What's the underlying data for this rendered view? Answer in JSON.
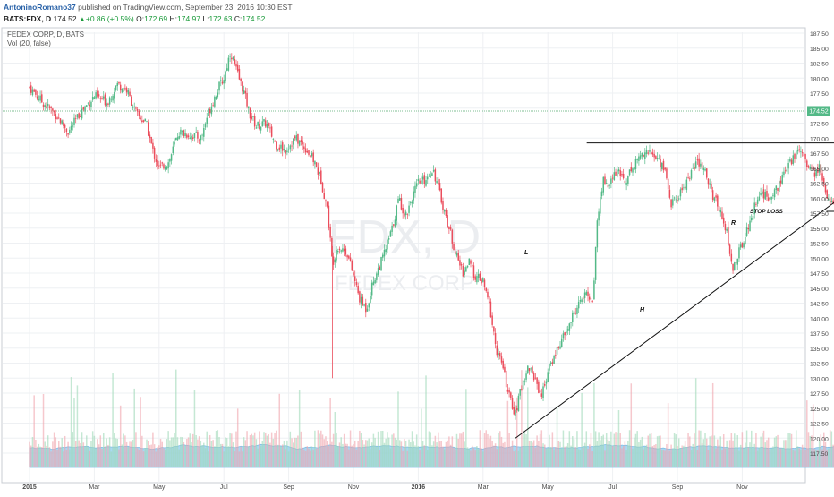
{
  "header": {
    "author": "AntoninoRomano37",
    "published": "published on TradingView.com, September 23, 2016 10:30 EST",
    "symbol": "BATS:FDX, D",
    "last": "174.52",
    "change_arrow": "▲",
    "change": "+0.86 (+0.5%)",
    "o_label": "O:",
    "o_value": "172.69",
    "h_label": "H:",
    "h_value": "174.97",
    "l_label": "L:",
    "l_value": "172.63",
    "c_label": "C:",
    "c_value": "174.52"
  },
  "pane": {
    "title": "FEDEX CORP, D, BATS",
    "volume_label": "Vol (20, false)",
    "watermark_symbol": "FDX, D",
    "watermark_name": "FEDEX CORP",
    "last_price_tag": "174.52"
  },
  "annotations": {
    "left_shoulder": "L",
    "head": "H",
    "right_shoulder": "R",
    "stop_loss": "STOP LOSS"
  },
  "colors": {
    "up": "#53b987",
    "down": "#eb4d5c",
    "volume_area": "#8ecbef",
    "grid": "#eef0f3",
    "last_price": "#7fbf93"
  },
  "chart_data": {
    "type": "candlestick",
    "title": "FEDEX CORP, D, BATS",
    "x_ticks": [
      "2015",
      "Mar",
      "May",
      "Jul",
      "Sep",
      "Nov",
      "2016",
      "Mar",
      "May",
      "Jul",
      "Sep",
      "Nov"
    ],
    "y_ticks": [
      "187.50",
      "185.00",
      "182.50",
      "180.00",
      "177.50",
      "175.00",
      "172.50",
      "170.00",
      "167.50",
      "165.00",
      "162.50",
      "160.00",
      "157.50",
      "155.00",
      "152.50",
      "150.00",
      "147.50",
      "145.00",
      "142.50",
      "140.00",
      "137.50",
      "135.00",
      "132.50",
      "130.00",
      "127.50",
      "125.00",
      "122.50",
      "120.00",
      "117.50"
    ],
    "ylim": [
      116.5,
      188.5
    ],
    "last_close": 174.52,
    "price_path": [
      {
        "x": 0.0,
        "y": 178.5
      },
      {
        "x": 0.4,
        "y": 176.0
      },
      {
        "x": 0.8,
        "y": 174.0
      },
      {
        "x": 1.2,
        "y": 171.0
      },
      {
        "x": 1.6,
        "y": 174.5
      },
      {
        "x": 2.0,
        "y": 177.0
      },
      {
        "x": 2.4,
        "y": 176.0
      },
      {
        "x": 2.7,
        "y": 179.0
      },
      {
        "x": 3.0,
        "y": 178.0
      },
      {
        "x": 3.3,
        "y": 174.0
      },
      {
        "x": 3.6,
        "y": 172.5
      },
      {
        "x": 3.8,
        "y": 168.0
      },
      {
        "x": 4.0,
        "y": 165.0
      },
      {
        "x": 4.3,
        "y": 166.0
      },
      {
        "x": 4.6,
        "y": 171.0
      },
      {
        "x": 5.0,
        "y": 170.5
      },
      {
        "x": 5.3,
        "y": 170.0
      },
      {
        "x": 5.5,
        "y": 174.0
      },
      {
        "x": 5.8,
        "y": 178.0
      },
      {
        "x": 6.0,
        "y": 180.0
      },
      {
        "x": 6.2,
        "y": 184.5
      },
      {
        "x": 6.4,
        "y": 181.0
      },
      {
        "x": 6.6,
        "y": 178.0
      },
      {
        "x": 6.8,
        "y": 174.0
      },
      {
        "x": 7.0,
        "y": 172.0
      },
      {
        "x": 7.3,
        "y": 172.5
      },
      {
        "x": 7.6,
        "y": 169.0
      },
      {
        "x": 7.9,
        "y": 168.0
      },
      {
        "x": 8.2,
        "y": 170.0
      },
      {
        "x": 8.5,
        "y": 168.5
      },
      {
        "x": 8.8,
        "y": 166.0
      },
      {
        "x": 9.0,
        "y": 163.0
      },
      {
        "x": 9.2,
        "y": 158.0
      },
      {
        "x": 9.35,
        "y": 149.0
      },
      {
        "x": 9.5,
        "y": 152.0
      },
      {
        "x": 9.8,
        "y": 151.0
      },
      {
        "x": 10.0,
        "y": 147.0
      },
      {
        "x": 10.2,
        "y": 143.0
      },
      {
        "x": 10.4,
        "y": 141.5
      },
      {
        "x": 10.6,
        "y": 146.0
      },
      {
        "x": 10.9,
        "y": 150.0
      },
      {
        "x": 11.2,
        "y": 155.0
      },
      {
        "x": 11.4,
        "y": 160.0
      },
      {
        "x": 11.6,
        "y": 157.0
      },
      {
        "x": 11.8,
        "y": 160.0
      },
      {
        "x": 12.0,
        "y": 162.5
      },
      {
        "x": 12.2,
        "y": 163.0
      },
      {
        "x": 12.45,
        "y": 165.0
      },
      {
        "x": 12.6,
        "y": 162.0
      },
      {
        "x": 12.8,
        "y": 158.0
      },
      {
        "x": 13.0,
        "y": 154.0
      },
      {
        "x": 13.2,
        "y": 150.0
      },
      {
        "x": 13.4,
        "y": 147.5
      },
      {
        "x": 13.55,
        "y": 149.5
      },
      {
        "x": 13.75,
        "y": 147.0
      },
      {
        "x": 14.0,
        "y": 146.0
      },
      {
        "x": 14.2,
        "y": 142.0
      },
      {
        "x": 14.4,
        "y": 135.0
      },
      {
        "x": 14.6,
        "y": 132.0
      },
      {
        "x": 14.8,
        "y": 127.0
      },
      {
        "x": 15.0,
        "y": 124.0
      },
      {
        "x": 15.2,
        "y": 129.0
      },
      {
        "x": 15.4,
        "y": 132.0
      },
      {
        "x": 15.6,
        "y": 130.0
      },
      {
        "x": 15.8,
        "y": 127.0
      },
      {
        "x": 16.0,
        "y": 131.0
      },
      {
        "x": 16.3,
        "y": 135.0
      },
      {
        "x": 16.6,
        "y": 138.0
      },
      {
        "x": 16.9,
        "y": 142.0
      },
      {
        "x": 17.2,
        "y": 144.0
      },
      {
        "x": 17.4,
        "y": 143.0
      },
      {
        "x": 17.5,
        "y": 155.0
      },
      {
        "x": 17.7,
        "y": 163.0
      },
      {
        "x": 17.9,
        "y": 162.0
      },
      {
        "x": 18.1,
        "y": 164.5
      },
      {
        "x": 18.4,
        "y": 163.0
      },
      {
        "x": 18.7,
        "y": 166.0
      },
      {
        "x": 19.0,
        "y": 168.0
      },
      {
        "x": 19.3,
        "y": 167.0
      },
      {
        "x": 19.6,
        "y": 165.0
      },
      {
        "x": 19.8,
        "y": 159.0
      },
      {
        "x": 20.0,
        "y": 160.0
      },
      {
        "x": 20.3,
        "y": 163.0
      },
      {
        "x": 20.6,
        "y": 166.0
      },
      {
        "x": 20.9,
        "y": 164.0
      },
      {
        "x": 21.1,
        "y": 160.0
      },
      {
        "x": 21.3,
        "y": 158.5
      },
      {
        "x": 21.5,
        "y": 155.0
      },
      {
        "x": 21.7,
        "y": 148.0
      },
      {
        "x": 21.9,
        "y": 151.0
      },
      {
        "x": 22.1,
        "y": 154.0
      },
      {
        "x": 22.3,
        "y": 157.0
      },
      {
        "x": 22.5,
        "y": 161.0
      },
      {
        "x": 22.8,
        "y": 160.0
      },
      {
        "x": 23.1,
        "y": 162.0
      },
      {
        "x": 23.3,
        "y": 164.0
      },
      {
        "x": 23.6,
        "y": 167.0
      },
      {
        "x": 23.8,
        "y": 168.5
      },
      {
        "x": 24.0,
        "y": 166.0
      },
      {
        "x": 24.2,
        "y": 164.0
      },
      {
        "x": 24.4,
        "y": 165.0
      },
      {
        "x": 24.6,
        "y": 160.0
      },
      {
        "x": 24.8,
        "y": 159.5
      },
      {
        "x": 24.9,
        "y": 160.5
      },
      {
        "x": 25.0,
        "y": 170.5
      },
      {
        "x": 25.15,
        "y": 173.0
      },
      {
        "x": 25.25,
        "y": 174.52
      }
    ]
  }
}
